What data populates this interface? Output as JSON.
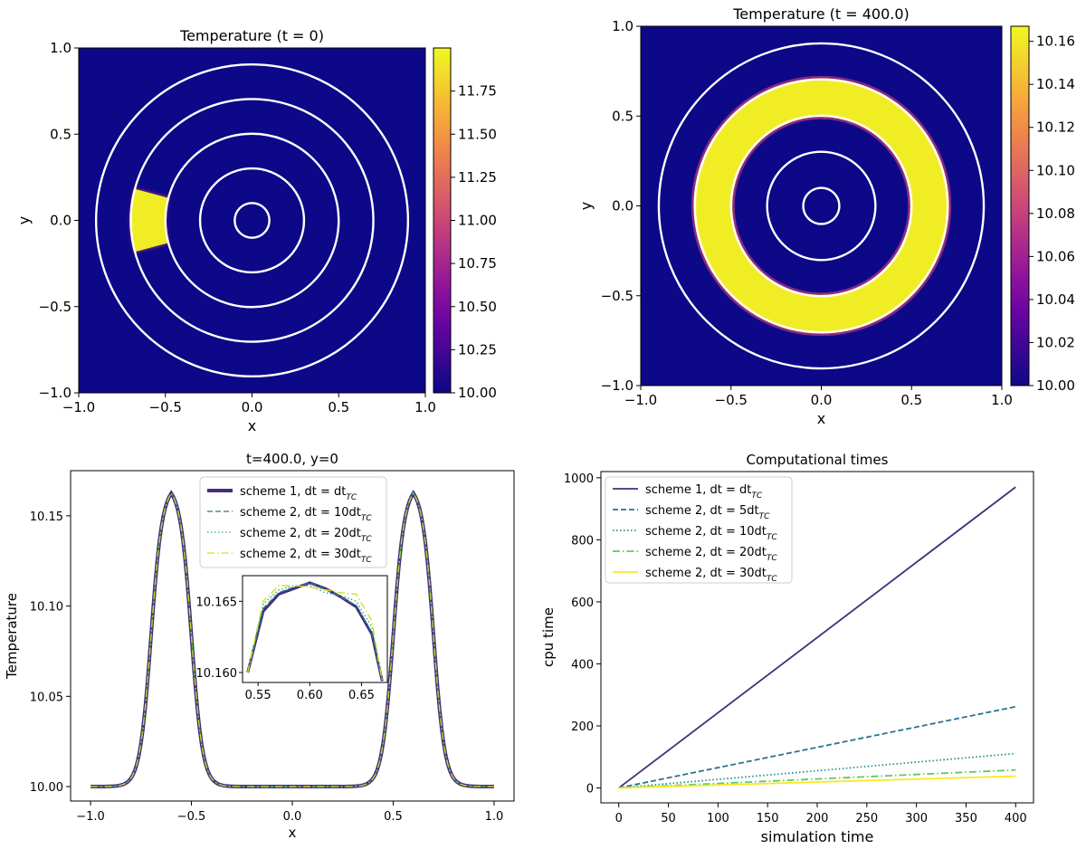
{
  "chart_data": [
    {
      "id": "p1",
      "type": "heatmap",
      "title": "Temperature  (t = 0)",
      "xlabel": "x",
      "ylabel": "y",
      "xlim": [
        -1.0,
        1.0
      ],
      "ylim": [
        -1.0,
        1.0
      ],
      "xticks": [
        "−1.0",
        "−0.5",
        "0.0",
        "0.5",
        "1.0"
      ],
      "yticks": [
        "−1.0",
        "−0.5",
        "0.0",
        "0.5",
        "1.0"
      ],
      "colorbar": {
        "min": 10.0,
        "max": 12.0,
        "ticks": [
          "10.00",
          "10.25",
          "10.50",
          "10.75",
          "11.00",
          "11.25",
          "11.50",
          "11.75"
        ]
      },
      "circle_radii": [
        0.1,
        0.3,
        0.5,
        0.7,
        0.9
      ],
      "hot_region": {
        "r_inner": 0.5,
        "r_outer": 0.7,
        "angle_halfwidth_deg": 15,
        "max_value": 12.0
      },
      "colors": {
        "low": "#0d0887",
        "mid": "#cc4778",
        "high": "#f0f921",
        "circles": "#ffffff"
      }
    },
    {
      "id": "p2",
      "type": "heatmap",
      "title": "Temperature  (t = 400.0)",
      "xlabel": "x",
      "ylabel": "y",
      "xlim": [
        -1.0,
        1.0
      ],
      "ylim": [
        -1.0,
        1.0
      ],
      "xticks": [
        "−1.0",
        "−0.5",
        "0.0",
        "0.5",
        "1.0"
      ],
      "yticks": [
        "−1.0",
        "−0.5",
        "0.0",
        "0.5",
        "1.0"
      ],
      "colorbar": {
        "min": 10.0,
        "max": 10.167,
        "ticks": [
          "10.00",
          "10.02",
          "10.04",
          "10.06",
          "10.08",
          "10.10",
          "10.12",
          "10.14",
          "10.16"
        ]
      },
      "circle_radii": [
        0.1,
        0.3,
        0.5,
        0.7,
        0.9
      ],
      "hot_region": {
        "r_inner": 0.5,
        "r_outer": 0.7,
        "max_value": 10.167
      },
      "colors": {
        "low": "#0d0887",
        "mid": "#cc4778",
        "high": "#f0f921",
        "circles": "#ffffff"
      }
    },
    {
      "id": "p3",
      "type": "line",
      "title": "t=400.0, y=0",
      "xlabel": "x",
      "ylabel": "Temperature",
      "xlim": [
        -1.0,
        1.0
      ],
      "ylim": [
        9.992,
        10.175
      ],
      "xticks": [
        "−1.0",
        "−0.5",
        "0.0",
        "0.5",
        "1.0"
      ],
      "yticks": [
        "10.00",
        "10.05",
        "10.10",
        "10.15"
      ],
      "profile": {
        "base": 10.0,
        "peak": 10.167,
        "centers": [
          -0.6,
          0.6
        ]
      },
      "series": [
        {
          "name": "scheme 1, dt = dt",
          "sub": "TC",
          "color": "#472d7b",
          "dash": "solid",
          "width": 4
        },
        {
          "name": "scheme 2, dt = 10dt",
          "sub": "TC",
          "color": "#2c728e",
          "dash": "dashed",
          "width": 1.3
        },
        {
          "name": "scheme 2, dt = 20dt",
          "sub": "TC",
          "color": "#28ae80",
          "dash": "dotted",
          "width": 1.3
        },
        {
          "name": "scheme 2, dt = 30dt",
          "sub": "TC",
          "color": "#d0e11c",
          "dash": "dashdot",
          "width": 1.3
        }
      ],
      "inset": {
        "xlim": [
          0.535,
          0.675
        ],
        "ylim": [
          10.1593,
          10.1668
        ],
        "xticks": [
          "0.55",
          "0.60",
          "0.65"
        ],
        "yticks": [
          "10.160",
          "10.165"
        ],
        "x": [
          0.54,
          0.555,
          0.57,
          0.585,
          0.6,
          0.615,
          0.63,
          0.645,
          0.66,
          0.67
        ],
        "series_values": [
          [
            10.16,
            10.1643,
            10.1655,
            10.1659,
            10.1663,
            10.1659,
            10.1653,
            10.1646,
            10.1627,
            10.1594
          ],
          [
            10.16,
            10.1645,
            10.1656,
            10.166,
            10.1663,
            10.1659,
            10.1653,
            10.1647,
            10.1628,
            10.1594
          ],
          [
            10.16,
            10.1648,
            10.1658,
            10.1661,
            10.1661,
            10.1656,
            10.1654,
            10.165,
            10.1632,
            10.1594
          ],
          [
            10.16,
            10.165,
            10.1661,
            10.1661,
            10.166,
            10.1658,
            10.1656,
            10.1655,
            10.1636,
            10.1594
          ]
        ]
      }
    },
    {
      "id": "p4",
      "type": "line",
      "title": "Computational times",
      "xlabel": "simulation time",
      "ylabel": "cpu time",
      "xlim": [
        -18,
        418
      ],
      "ylim": [
        -48,
        1020
      ],
      "xticks": [
        "0",
        "50",
        "100",
        "150",
        "200",
        "250",
        "300",
        "350",
        "400"
      ],
      "yticks": [
        "0",
        "200",
        "400",
        "600",
        "800",
        "1000"
      ],
      "x": [
        0,
        400
      ],
      "series": [
        {
          "name": "scheme 1, dt = dt",
          "sub": "TC",
          "color": "#472d7b",
          "dash": "solid",
          "values": [
            0,
            970
          ]
        },
        {
          "name": "scheme 2, dt = 5dt",
          "sub": "TC",
          "color": "#2c728e",
          "dash": "dashed",
          "values": [
            0,
            262
          ]
        },
        {
          "name": "scheme 2, dt = 10dt",
          "sub": "TC",
          "color": "#21918c",
          "dash": "dotted",
          "values": [
            0,
            111
          ]
        },
        {
          "name": "scheme 2, dt = 20dt",
          "sub": "TC",
          "color": "#5ec962",
          "dash": "dashdot",
          "values": [
            0,
            58
          ]
        },
        {
          "name": "scheme 2, dt = 30dt",
          "sub": "TC",
          "color": "#fde725",
          "dash": "solid",
          "values": [
            0,
            38
          ]
        }
      ]
    }
  ]
}
